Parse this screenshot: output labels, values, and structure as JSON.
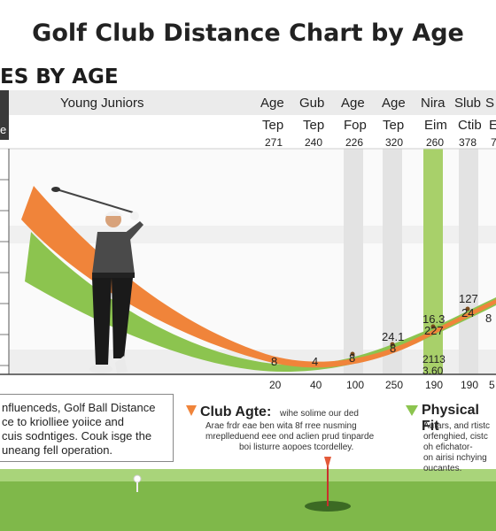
{
  "title": "Golf Club Distance Chart by Age",
  "subtitle": "ES BY AGE",
  "table": {
    "header_row_1": [
      "Young Juniors",
      "Age",
      "Gub",
      "Age",
      "Age",
      "Nira",
      "Slub",
      "S"
    ],
    "header_row_2": [
      "e",
      "Tep",
      "Tep",
      "Fop",
      "Tep",
      "Eim",
      "Ctib",
      "E"
    ],
    "value_row": [
      "271",
      "240",
      "226",
      "320",
      "260",
      "378",
      "7"
    ]
  },
  "chart_data": {
    "type": "line",
    "x_tick_labels": [
      "20",
      "40",
      "100",
      "250",
      "190",
      "190",
      "5"
    ],
    "series": [
      {
        "color": "#f0843a",
        "values": [
          null,
          null,
          null,
          null,
          null,
          null,
          null
        ]
      },
      {
        "color": "#8cc44f",
        "values": [
          null,
          null,
          null,
          null,
          null,
          null,
          null
        ]
      }
    ],
    "data_labels": [
      "8",
      "4",
      "8",
      "24.1",
      "8",
      "16.3",
      "227",
      "127",
      "24",
      "2113",
      "3.60",
      "8"
    ],
    "grid": true
  },
  "info": {
    "left_text": [
      "nfluenceds, Golf Ball Distance",
      "ce to kriolliee yoiice and",
      "cuis sodntiges. Couk isge the",
      "uneang fell operation."
    ],
    "middle_heading": "Club Agte:",
    "middle_text": [
      "wihe solime our ded",
      "Arae frdr eae ben wita 8f rree nusming",
      "mreplleduend eee ond aclien prud tinparde",
      "boi listurre aopoes tcordelley."
    ],
    "right_heading": "Physical Fit",
    "right_text": [
      "Autars, and rtistc",
      "orfenghied, cistc",
      "oh efichator-",
      "on airisi nchying",
      "oucantes."
    ]
  },
  "colors": {
    "orange": "#f0843a",
    "green": "#8cc44f",
    "column_grey": "#e3e3e3",
    "column_green": "#a8d06a"
  }
}
